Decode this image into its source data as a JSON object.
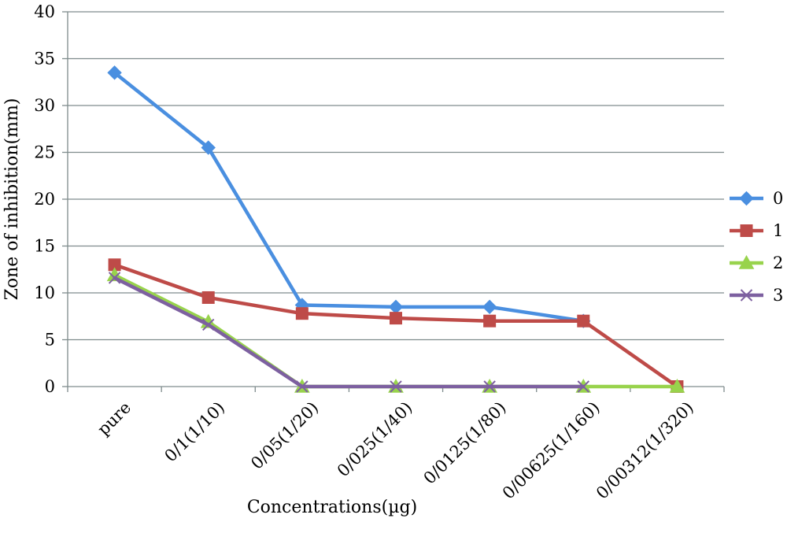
{
  "chart_data": {
    "type": "line",
    "title": "",
    "xlabel": "Concentrations(µg)",
    "ylabel": "Zone of inhibition(mm)",
    "ylim": [
      0,
      40
    ],
    "yticks": [
      0,
      5,
      10,
      15,
      20,
      25,
      30,
      35,
      40
    ],
    "grid": true,
    "legend_position": "right",
    "categories": [
      "pure",
      "0/1(1/10)",
      "0/05(1/20)",
      "0/025(1/40)",
      "0/0125(1/80)",
      "0/00625(1/160)",
      "0/00312(1/320)"
    ],
    "series": [
      {
        "name": "0",
        "color": "#4A8FE0",
        "marker": "diamond",
        "values": [
          33.5,
          25.5,
          8.7,
          8.5,
          8.5,
          7.0,
          null
        ]
      },
      {
        "name": "1",
        "color": "#BE4B48",
        "marker": "square",
        "values": [
          13.0,
          9.5,
          7.8,
          7.3,
          7.0,
          7.0,
          0.0
        ]
      },
      {
        "name": "2",
        "color": "#98D34C",
        "marker": "triangle",
        "values": [
          11.9,
          6.9,
          0.0,
          0.0,
          0.0,
          0.0,
          0.0
        ]
      },
      {
        "name": "3",
        "color": "#7D60A0",
        "marker": "x",
        "values": [
          11.6,
          6.6,
          0.0,
          0.0,
          0.0,
          0.0,
          null
        ]
      }
    ]
  }
}
